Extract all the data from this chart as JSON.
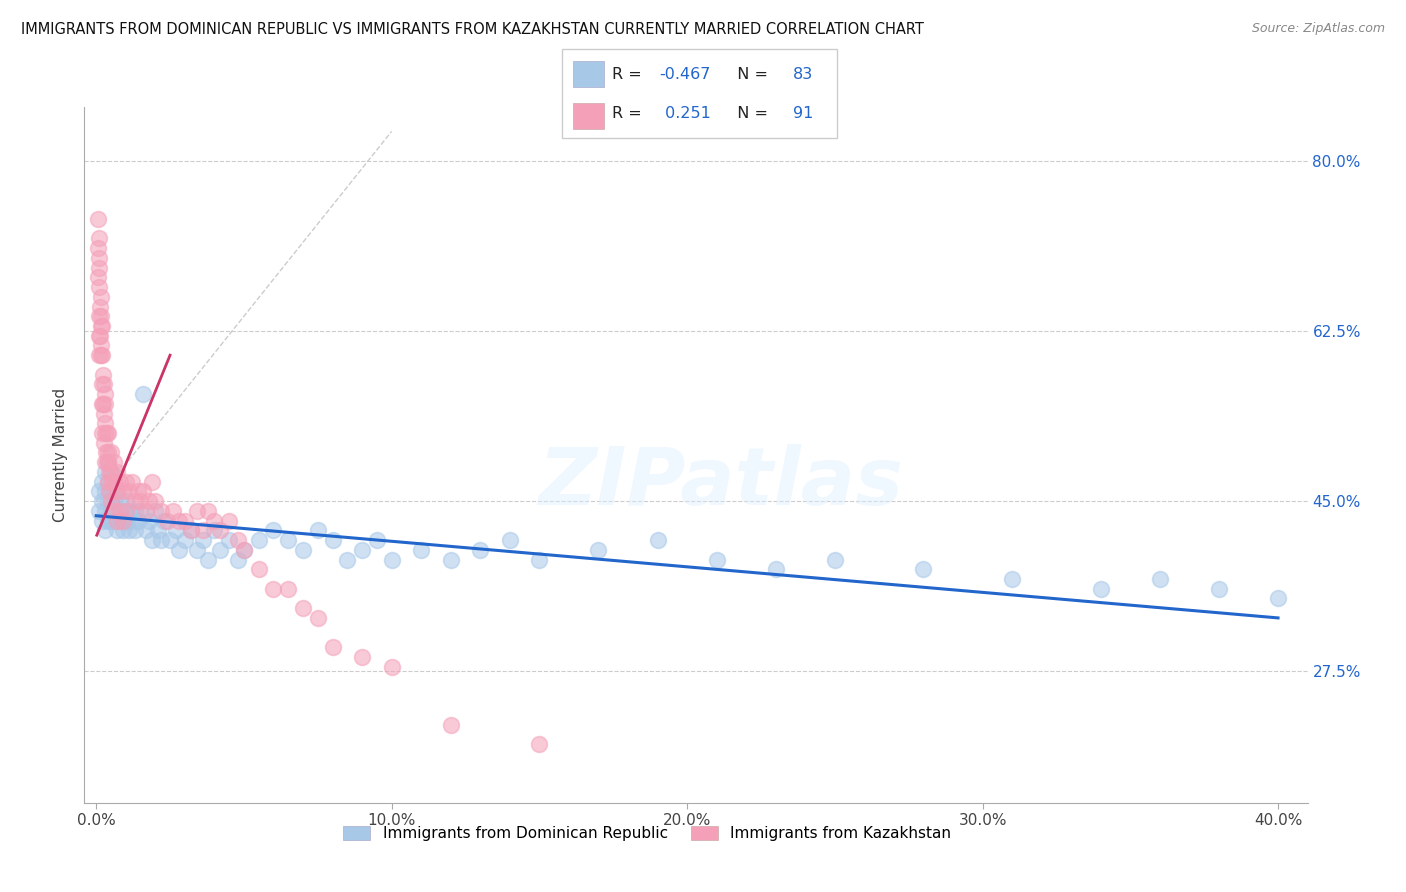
{
  "title": "IMMIGRANTS FROM DOMINICAN REPUBLIC VS IMMIGRANTS FROM KAZAKHSTAN CURRENTLY MARRIED CORRELATION CHART",
  "source": "Source: ZipAtlas.com",
  "ylabel": "Currently Married",
  "blue_color": "#a8c8e8",
  "pink_color": "#f4a0b8",
  "blue_line_color": "#2266cc",
  "pink_line_color": "#cc3366",
  "watermark_text": "ZIPatlas",
  "blue_label": "Immigrants from Dominican Republic",
  "pink_label": "Immigrants from Kazakhstan",
  "xlim": [
    -0.004,
    0.41
  ],
  "ylim": [
    0.14,
    0.855
  ],
  "xtick_positions": [
    0.0,
    0.1,
    0.2,
    0.3,
    0.4
  ],
  "xtick_labels": [
    "0.0%",
    "10.0%",
    "20.0%",
    "30.0%",
    "40.0%"
  ],
  "ytick_positions": [
    0.275,
    0.45,
    0.625,
    0.8
  ],
  "ytick_labels": [
    "27.5%",
    "45.0%",
    "62.5%",
    "80.0%"
  ],
  "blue_r": -0.467,
  "blue_n": 83,
  "pink_r": 0.251,
  "pink_n": 91,
  "blue_scatter_x": [
    0.001,
    0.001,
    0.002,
    0.002,
    0.002,
    0.003,
    0.003,
    0.003,
    0.003,
    0.004,
    0.004,
    0.004,
    0.004,
    0.005,
    0.005,
    0.005,
    0.005,
    0.006,
    0.006,
    0.006,
    0.007,
    0.007,
    0.007,
    0.008,
    0.008,
    0.009,
    0.009,
    0.01,
    0.01,
    0.011,
    0.011,
    0.012,
    0.013,
    0.013,
    0.014,
    0.015,
    0.016,
    0.017,
    0.018,
    0.019,
    0.02,
    0.021,
    0.022,
    0.023,
    0.025,
    0.027,
    0.028,
    0.03,
    0.032,
    0.034,
    0.036,
    0.038,
    0.04,
    0.042,
    0.045,
    0.048,
    0.05,
    0.055,
    0.06,
    0.065,
    0.07,
    0.075,
    0.08,
    0.085,
    0.09,
    0.095,
    0.1,
    0.11,
    0.12,
    0.13,
    0.14,
    0.15,
    0.17,
    0.19,
    0.21,
    0.23,
    0.25,
    0.28,
    0.31,
    0.34,
    0.36,
    0.38,
    0.4
  ],
  "blue_scatter_y": [
    0.44,
    0.46,
    0.43,
    0.45,
    0.47,
    0.42,
    0.44,
    0.46,
    0.48,
    0.43,
    0.45,
    0.47,
    0.49,
    0.44,
    0.46,
    0.43,
    0.48,
    0.45,
    0.47,
    0.43,
    0.44,
    0.46,
    0.42,
    0.45,
    0.43,
    0.44,
    0.42,
    0.45,
    0.43,
    0.44,
    0.42,
    0.43,
    0.44,
    0.42,
    0.43,
    0.44,
    0.56,
    0.42,
    0.43,
    0.41,
    0.44,
    0.42,
    0.41,
    0.43,
    0.41,
    0.42,
    0.4,
    0.41,
    0.42,
    0.4,
    0.41,
    0.39,
    0.42,
    0.4,
    0.41,
    0.39,
    0.4,
    0.41,
    0.42,
    0.41,
    0.4,
    0.42,
    0.41,
    0.39,
    0.4,
    0.41,
    0.39,
    0.4,
    0.39,
    0.4,
    0.41,
    0.39,
    0.4,
    0.41,
    0.39,
    0.38,
    0.39,
    0.38,
    0.37,
    0.36,
    0.37,
    0.36,
    0.35
  ],
  "pink_scatter_x": [
    0.0005,
    0.0005,
    0.0005,
    0.0008,
    0.0008,
    0.001,
    0.001,
    0.001,
    0.001,
    0.001,
    0.0012,
    0.0012,
    0.0015,
    0.0015,
    0.0015,
    0.0018,
    0.0018,
    0.002,
    0.002,
    0.002,
    0.002,
    0.002,
    0.0022,
    0.0022,
    0.0025,
    0.0025,
    0.0025,
    0.003,
    0.003,
    0.003,
    0.003,
    0.003,
    0.0032,
    0.0035,
    0.0035,
    0.004,
    0.004,
    0.004,
    0.004,
    0.0042,
    0.0045,
    0.005,
    0.005,
    0.005,
    0.0055,
    0.006,
    0.006,
    0.006,
    0.007,
    0.007,
    0.007,
    0.008,
    0.008,
    0.009,
    0.009,
    0.01,
    0.01,
    0.011,
    0.012,
    0.013,
    0.014,
    0.015,
    0.016,
    0.017,
    0.018,
    0.019,
    0.02,
    0.022,
    0.024,
    0.026,
    0.028,
    0.03,
    0.032,
    0.034,
    0.036,
    0.038,
    0.04,
    0.042,
    0.045,
    0.048,
    0.05,
    0.055,
    0.06,
    0.065,
    0.07,
    0.075,
    0.08,
    0.09,
    0.1,
    0.12,
    0.15
  ],
  "pink_scatter_y": [
    0.74,
    0.71,
    0.68,
    0.72,
    0.69,
    0.7,
    0.67,
    0.64,
    0.62,
    0.6,
    0.65,
    0.62,
    0.66,
    0.63,
    0.6,
    0.64,
    0.61,
    0.63,
    0.6,
    0.57,
    0.55,
    0.52,
    0.58,
    0.55,
    0.57,
    0.54,
    0.51,
    0.55,
    0.52,
    0.49,
    0.56,
    0.53,
    0.5,
    0.52,
    0.49,
    0.52,
    0.49,
    0.47,
    0.5,
    0.48,
    0.46,
    0.5,
    0.48,
    0.45,
    0.47,
    0.49,
    0.47,
    0.44,
    0.48,
    0.46,
    0.43,
    0.47,
    0.44,
    0.46,
    0.43,
    0.47,
    0.44,
    0.46,
    0.47,
    0.45,
    0.46,
    0.45,
    0.46,
    0.44,
    0.45,
    0.47,
    0.45,
    0.44,
    0.43,
    0.44,
    0.43,
    0.43,
    0.42,
    0.44,
    0.42,
    0.44,
    0.43,
    0.42,
    0.43,
    0.41,
    0.4,
    0.38,
    0.36,
    0.36,
    0.34,
    0.33,
    0.3,
    0.29,
    0.28,
    0.22,
    0.2
  ]
}
